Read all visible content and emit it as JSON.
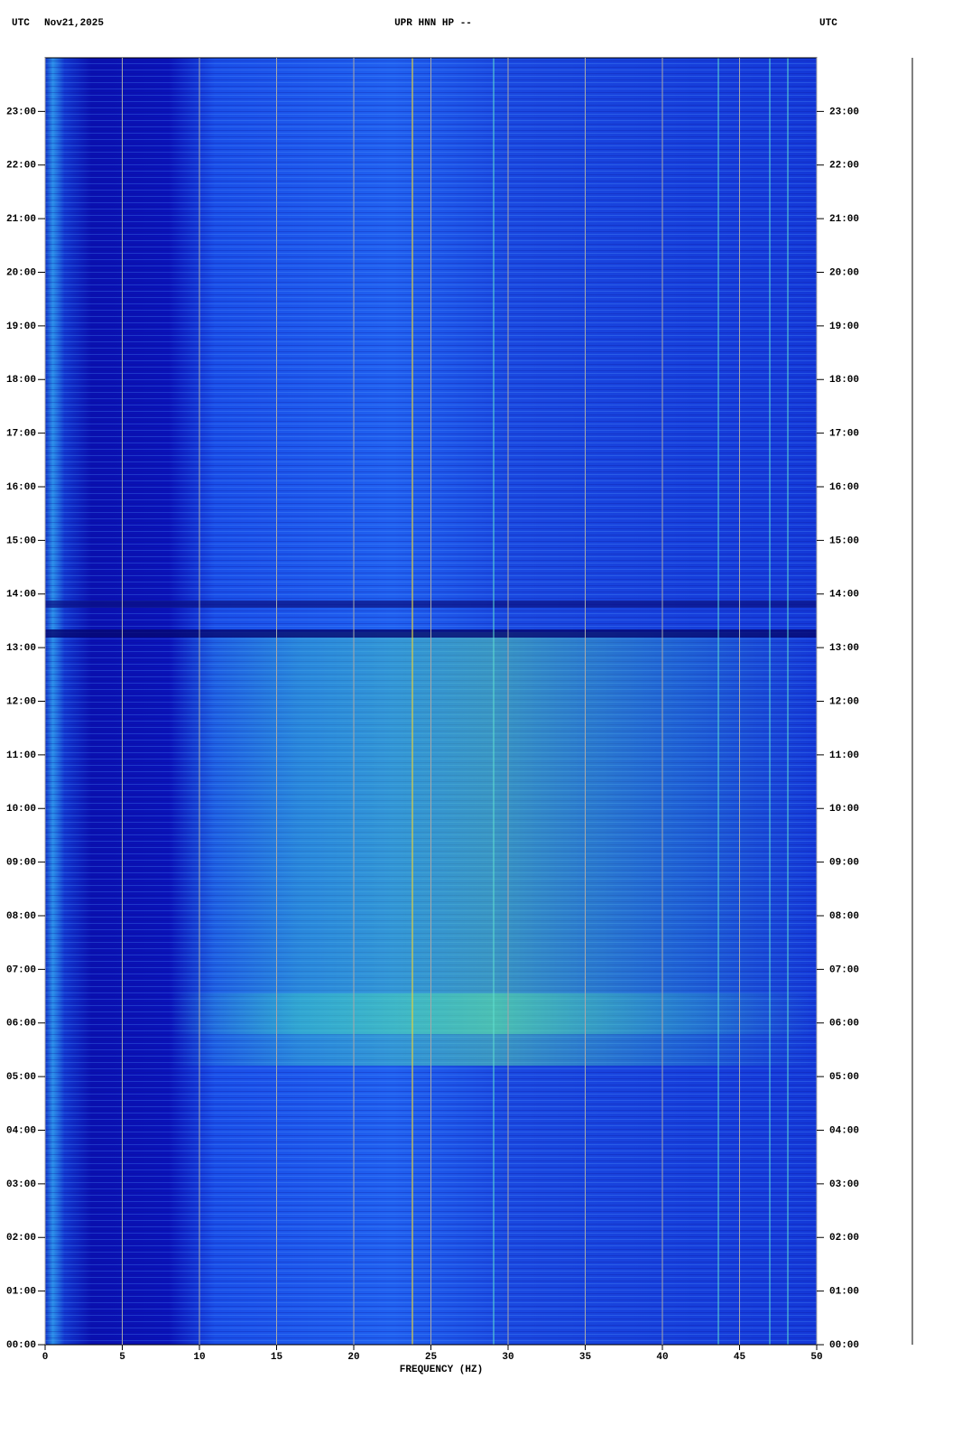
{
  "chart_data": {
    "type": "spectrogram",
    "header_left_zone": "UTC",
    "header_date": "Nov21,2025",
    "title": "UPR HNN HP --",
    "header_right_zone": "UTC",
    "xlabel": "FREQUENCY (HZ)",
    "xlim": [
      0,
      50
    ],
    "xticks": [
      0,
      5,
      10,
      15,
      20,
      25,
      30,
      35,
      40,
      45,
      50
    ],
    "ylim": [
      0,
      24
    ],
    "yticks": [
      {
        "value": 0,
        "label": "00:00"
      },
      {
        "value": 1,
        "label": "01:00"
      },
      {
        "value": 2,
        "label": "02:00"
      },
      {
        "value": 3,
        "label": "03:00"
      },
      {
        "value": 4,
        "label": "04:00"
      },
      {
        "value": 5,
        "label": "05:00"
      },
      {
        "value": 6,
        "label": "06:00"
      },
      {
        "value": 7,
        "label": "07:00"
      },
      {
        "value": 8,
        "label": "08:00"
      },
      {
        "value": 9,
        "label": "09:00"
      },
      {
        "value": 10,
        "label": "10:00"
      },
      {
        "value": 11,
        "label": "11:00"
      },
      {
        "value": 12,
        "label": "12:00"
      },
      {
        "value": 13,
        "label": "13:00"
      },
      {
        "value": 14,
        "label": "14:00"
      },
      {
        "value": 15,
        "label": "15:00"
      },
      {
        "value": 16,
        "label": "16:00"
      },
      {
        "value": 17,
        "label": "17:00"
      },
      {
        "value": 18,
        "label": "18:00"
      },
      {
        "value": 19,
        "label": "19:00"
      },
      {
        "value": 20,
        "label": "20:00"
      },
      {
        "value": 21,
        "label": "21:00"
      },
      {
        "value": 22,
        "label": "22:00"
      },
      {
        "value": 23,
        "label": "23:00"
      }
    ],
    "grid": true,
    "grid_color": "#a8a8a8"
  }
}
